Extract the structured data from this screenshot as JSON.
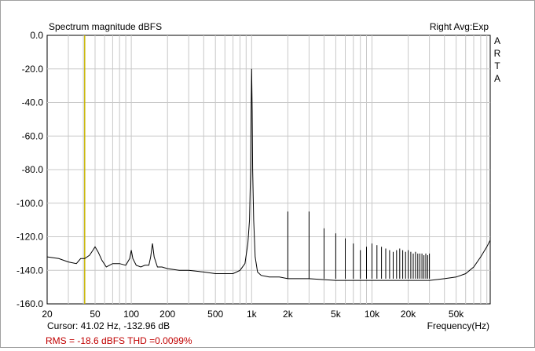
{
  "title": "Spectrum magnitude dBFS",
  "status_right": "Right Avg:Exp",
  "vertical_brand": [
    "A",
    "R",
    "T",
    "A"
  ],
  "cursor_text": "Cursor: 41.02 Hz, -132.96 dB",
  "measurement_text": "RMS =  -18.6 dBFS   THD =0.0099%",
  "colors": {
    "trace": "#000000",
    "grid": "#c8c8c8",
    "cursor": "#c8b400",
    "measurement": "#c00000"
  },
  "chart_data": {
    "type": "line",
    "title": "Spectrum magnitude dBFS",
    "xlabel": "Frequency(Hz)",
    "ylabel": "",
    "x_scale": "log",
    "xlim": [
      20,
      96000
    ],
    "ylim": [
      -160,
      0
    ],
    "grid": true,
    "x_ticks": [
      {
        "value": 20,
        "label": "20"
      },
      {
        "value": 50,
        "label": "50"
      },
      {
        "value": 100,
        "label": "100"
      },
      {
        "value": 200,
        "label": "200"
      },
      {
        "value": 500,
        "label": "500"
      },
      {
        "value": 1000,
        "label": "1k"
      },
      {
        "value": 2000,
        "label": "2k"
      },
      {
        "value": 5000,
        "label": "5k"
      },
      {
        "value": 10000,
        "label": "10k"
      },
      {
        "value": 20000,
        "label": "20k"
      },
      {
        "value": 50000,
        "label": "50k"
      }
    ],
    "y_ticks": [
      {
        "value": 0,
        "label": "0.0"
      },
      {
        "value": -20,
        "label": "-20.0"
      },
      {
        "value": -40,
        "label": "-40.0"
      },
      {
        "value": -60,
        "label": "-60.0"
      },
      {
        "value": -80,
        "label": "-80.0"
      },
      {
        "value": -100,
        "label": "-100.0"
      },
      {
        "value": -120,
        "label": "-120.0"
      },
      {
        "value": -140,
        "label": "-140.0"
      },
      {
        "value": -160,
        "label": "-160.0"
      }
    ],
    "cursor": {
      "x": 41.02,
      "y": -132.96
    },
    "series": [
      {
        "x": [
          20,
          25,
          30,
          35,
          38,
          41,
          45,
          48,
          50,
          53,
          57,
          62,
          70,
          80,
          90,
          97,
          100,
          103,
          110,
          120,
          130,
          140,
          145,
          150,
          155,
          165,
          180,
          200,
          250,
          300,
          400,
          500,
          600,
          700,
          800,
          880,
          930,
          960,
          980,
          990,
          1000,
          1010,
          1020,
          1040,
          1070,
          1120,
          1200,
          1400,
          1700,
          2000,
          3000,
          5000,
          8000,
          10000,
          15000,
          20000,
          30000,
          40000,
          50000,
          60000,
          70000,
          80000,
          90000,
          96000
        ],
        "y": [
          -132,
          -133,
          -135,
          -136,
          -133,
          -133,
          -131,
          -128,
          -126,
          -129,
          -134,
          -138,
          -136,
          -136,
          -137,
          -133,
          -128,
          -133,
          -137,
          -138,
          -137,
          -137,
          -132,
          -124,
          -132,
          -138,
          -138,
          -139,
          -140,
          -140,
          -141,
          -142,
          -142,
          -142,
          -140,
          -136,
          -124,
          -110,
          -80,
          -45,
          -20,
          -45,
          -80,
          -110,
          -132,
          -141,
          -143,
          -144,
          -144,
          -145,
          -145,
          -146,
          -146,
          -146,
          -146,
          -146,
          -146,
          -145,
          -144,
          -142,
          -138,
          -132,
          -126,
          -122
        ]
      },
      {
        "x": [
          2000,
          3000,
          4000,
          5000,
          6000,
          7000,
          8000,
          9000,
          10000,
          11000,
          12000,
          13000,
          14000,
          15000,
          16000,
          17000,
          18000,
          19000,
          20000,
          21000,
          22000,
          23000,
          24000,
          25000,
          26000,
          27000,
          28000,
          29000,
          30000
        ],
        "y": [
          -105,
          -105,
          -115,
          -118,
          -121,
          -124,
          -128,
          -126,
          -124,
          -125,
          -126,
          -127,
          -128,
          -129,
          -128,
          -127,
          -128,
          -129,
          -128,
          -129,
          -130,
          -129,
          -130,
          -130,
          -130,
          -131,
          -130,
          -131,
          -130
        ]
      }
    ]
  }
}
